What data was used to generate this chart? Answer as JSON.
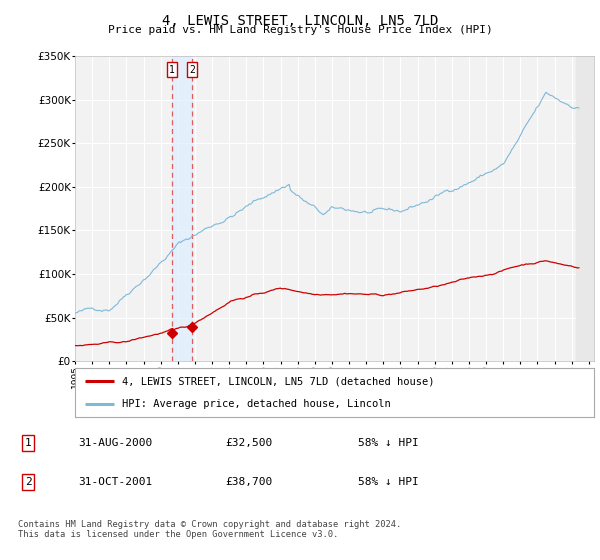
{
  "title": "4, LEWIS STREET, LINCOLN, LN5 7LD",
  "subtitle": "Price paid vs. HM Land Registry's House Price Index (HPI)",
  "background_color": "#ffffff",
  "plot_bg_color": "#f2f2f2",
  "grid_color": "#ffffff",
  "ylim": [
    0,
    350000
  ],
  "yticks": [
    0,
    50000,
    100000,
    150000,
    200000,
    250000,
    300000,
    350000
  ],
  "ytick_labels": [
    "£0",
    "£50K",
    "£100K",
    "£150K",
    "£200K",
    "£250K",
    "£300K",
    "£350K"
  ],
  "xlim_start": 1995.0,
  "xlim_end": 2025.3,
  "hpi_color": "#7fb8d8",
  "property_color": "#cc0000",
  "transactions": [
    {
      "date": 2000.667,
      "price": 32500,
      "label": "1"
    },
    {
      "date": 2001.833,
      "price": 38700,
      "label": "2"
    }
  ],
  "vline_color": "#dd4444",
  "shading_color": "#ddeeff",
  "legend_entries": [
    {
      "label": "4, LEWIS STREET, LINCOLN, LN5 7LD (detached house)",
      "color": "#cc0000"
    },
    {
      "label": "HPI: Average price, detached house, Lincoln",
      "color": "#7fb8d8"
    }
  ],
  "table_rows": [
    {
      "num": "1",
      "date": "31-AUG-2000",
      "price": "£32,500",
      "pct": "58% ↓ HPI"
    },
    {
      "num": "2",
      "date": "31-OCT-2001",
      "price": "£38,700",
      "pct": "58% ↓ HPI"
    }
  ],
  "footer": "Contains HM Land Registry data © Crown copyright and database right 2024.\nThis data is licensed under the Open Government Licence v3.0.",
  "hatch_start": 2024.25,
  "hatch_end": 2025.3
}
